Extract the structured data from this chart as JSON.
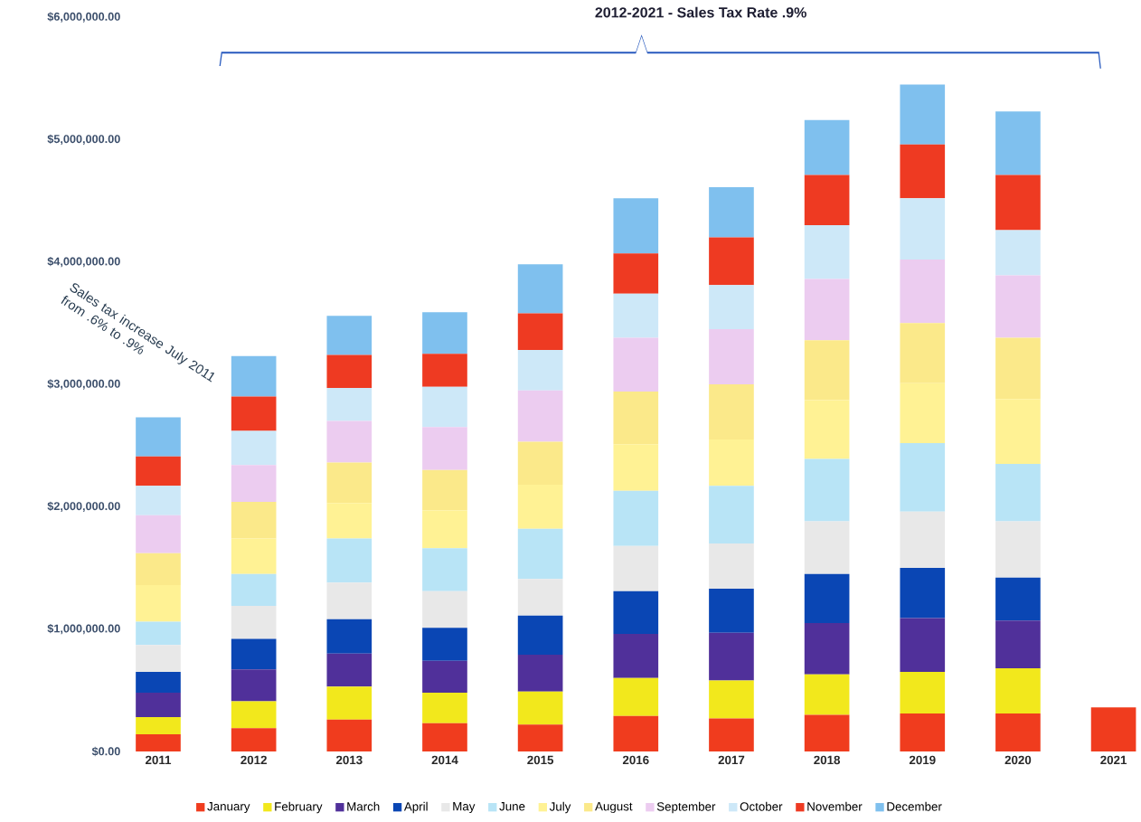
{
  "chart_data": {
    "type": "bar",
    "stacked": true,
    "legend": "bottom",
    "categories": [
      "2011",
      "2012",
      "2013",
      "2014",
      "2015",
      "2016",
      "2017",
      "2018",
      "2019",
      "2020",
      "2021"
    ],
    "ylim": [
      0,
      6000000
    ],
    "yticks": [
      {
        "value": 0,
        "label": "$0.00"
      },
      {
        "value": 1000000,
        "label": "$1,000,000.00"
      },
      {
        "value": 2000000,
        "label": "$2,000,000.00"
      },
      {
        "value": 3000000,
        "label": "$3,000,000.00"
      },
      {
        "value": 4000000,
        "label": "$4,000,000.00"
      },
      {
        "value": 5000000,
        "label": "$5,000,000.00"
      },
      {
        "value": 6000000,
        "label": "$6,000,000.00"
      }
    ],
    "annotations": [
      "2012-2021  - Sales Tax Rate .9%",
      "Sales tax increase July 2011 from .6% to .9%"
    ],
    "series": [
      {
        "name": "January",
        "color": "#f03c1e",
        "values": [
          140000,
          190000,
          260000,
          230000,
          220000,
          290000,
          270000,
          300000,
          310000,
          310000,
          360000
        ]
      },
      {
        "name": "February",
        "color": "#f2e81c",
        "values": [
          140000,
          220000,
          270000,
          250000,
          270000,
          310000,
          310000,
          330000,
          340000,
          370000,
          null
        ]
      },
      {
        "name": "March",
        "color": "#50309a",
        "values": [
          200000,
          260000,
          270000,
          260000,
          300000,
          360000,
          390000,
          420000,
          440000,
          390000,
          null
        ]
      },
      {
        "name": "April",
        "color": "#0a46b4",
        "values": [
          170000,
          250000,
          280000,
          270000,
          320000,
          350000,
          360000,
          400000,
          410000,
          350000,
          null
        ]
      },
      {
        "name": "May",
        "color": "#e8e8e8",
        "values": [
          220000,
          270000,
          300000,
          300000,
          300000,
          370000,
          370000,
          430000,
          460000,
          460000,
          null
        ]
      },
      {
        "name": "June",
        "color": "#b8e4f6",
        "values": [
          190000,
          260000,
          360000,
          350000,
          410000,
          450000,
          470000,
          510000,
          560000,
          470000,
          null
        ]
      },
      {
        "name": "July",
        "color": "#fff294",
        "values": [
          300000,
          290000,
          290000,
          310000,
          360000,
          380000,
          380000,
          480000,
          490000,
          530000,
          null
        ]
      },
      {
        "name": "August",
        "color": "#fbe98a",
        "values": [
          260000,
          300000,
          330000,
          330000,
          350000,
          430000,
          450000,
          490000,
          490000,
          500000,
          null
        ]
      },
      {
        "name": "September",
        "color": "#ecccf0",
        "values": [
          310000,
          300000,
          340000,
          350000,
          420000,
          440000,
          450000,
          500000,
          520000,
          510000,
          null
        ]
      },
      {
        "name": "October",
        "color": "#cde8f8",
        "values": [
          240000,
          280000,
          270000,
          330000,
          330000,
          360000,
          360000,
          440000,
          500000,
          370000,
          null
        ]
      },
      {
        "name": "November",
        "color": "#ee3a22",
        "values": [
          240000,
          280000,
          270000,
          270000,
          300000,
          330000,
          390000,
          410000,
          440000,
          450000,
          null
        ]
      },
      {
        "name": "December",
        "color": "#7fc0ee",
        "values": [
          320000,
          330000,
          320000,
          340000,
          400000,
          450000,
          410000,
          450000,
          490000,
          520000,
          null
        ]
      }
    ]
  }
}
